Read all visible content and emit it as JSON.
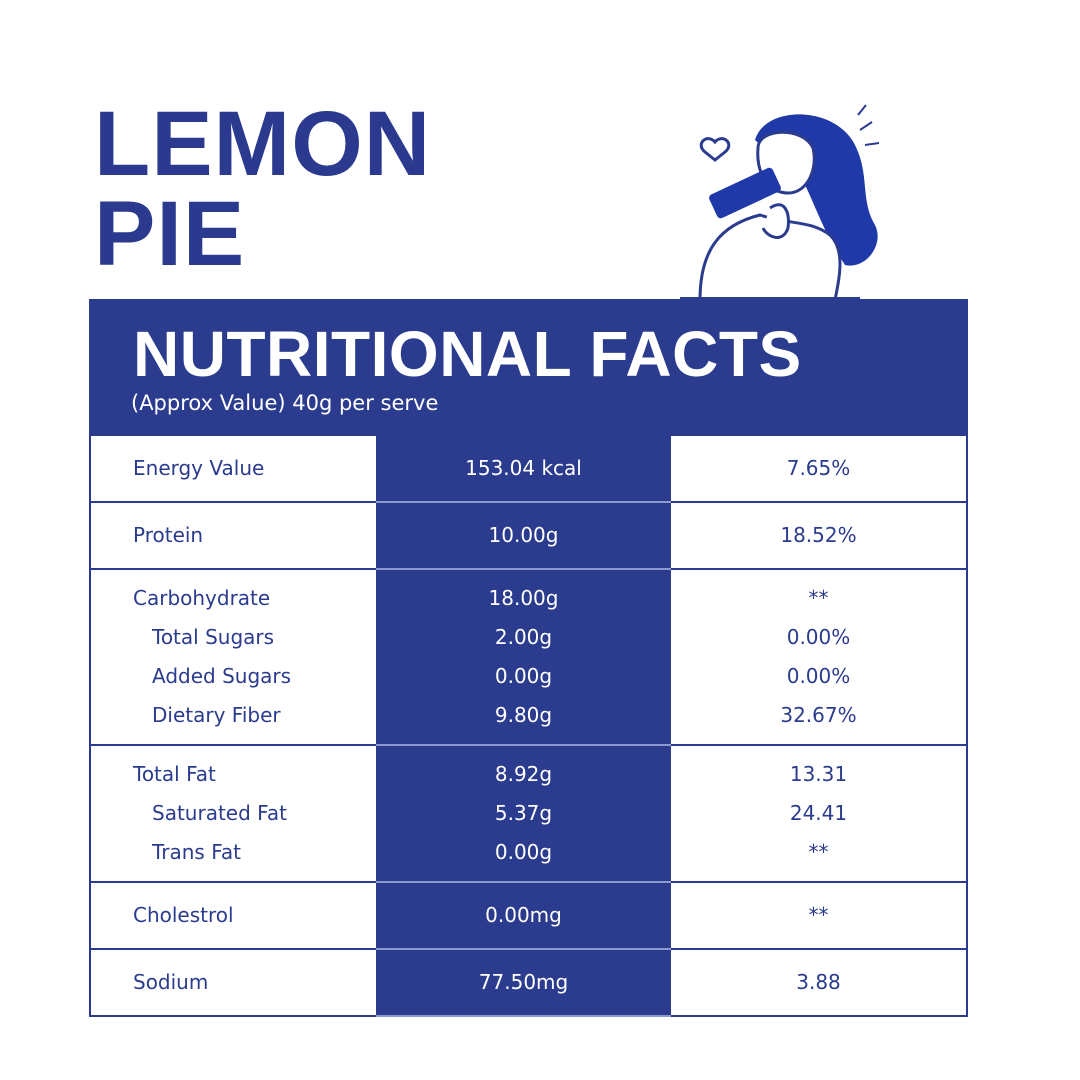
{
  "title": [
    "LEMON",
    "PIE"
  ],
  "panel": {
    "heading": "NUTRITIONAL FACTS",
    "subheading": "(Approx Value) 40g per serve"
  },
  "table": {
    "groups": [
      {
        "rows": [
          [
            "Energy Value",
            "153.04 kcal",
            "7.65%"
          ]
        ]
      },
      {
        "rows": [
          [
            "Protein",
            "10.00g",
            "18.52%"
          ]
        ]
      },
      {
        "rows": [
          [
            "Carbohydrate",
            "18.00g",
            "**"
          ],
          [
            "Total Sugars",
            "2.00g",
            "0.00%"
          ],
          [
            "Added Sugars",
            "0.00g",
            "0.00%"
          ],
          [
            "Dietary Fiber",
            "9.80g",
            "32.67%"
          ]
        ]
      },
      {
        "rows": [
          [
            "Total Fat",
            "8.92g",
            "13.31"
          ],
          [
            "Saturated Fat",
            "5.37g",
            "24.41"
          ],
          [
            "Trans Fat",
            "0.00g",
            "**"
          ]
        ]
      },
      {
        "rows": [
          [
            "Cholestrol",
            "0.00mg",
            "**"
          ]
        ]
      },
      {
        "rows": [
          [
            "Sodium",
            "77.50mg",
            "3.88"
          ]
        ]
      }
    ]
  }
}
